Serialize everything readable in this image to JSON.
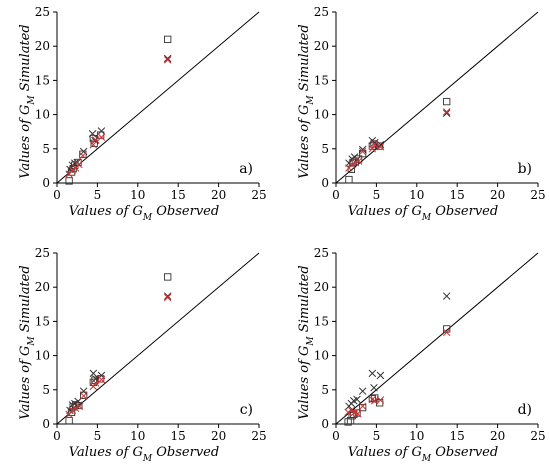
{
  "figure": {
    "x_axis_label": "Values of G",
    "x_axis_sub": "M",
    "x_axis_suffix": " Observed",
    "y_axis_label": "Values of G",
    "y_axis_sub": "M",
    "y_axis_suffix": " Simulated"
  },
  "chart_data": [
    {
      "type": "scatter",
      "panel_label": "a)",
      "xlim": [
        0,
        25
      ],
      "ylim": [
        0,
        25
      ],
      "ticks": [
        "0",
        "5",
        "10",
        "15",
        "20",
        "25"
      ],
      "reference_line": "1:1",
      "series": [
        {
          "marker": "square",
          "color": "#333333",
          "points": [
            [
              1.5,
              0.3
            ],
            [
              1.8,
              1.6
            ],
            [
              2.0,
              2.1
            ],
            [
              2.2,
              2.6
            ],
            [
              2.6,
              3.0
            ],
            [
              3.2,
              4.2
            ],
            [
              4.5,
              6.5
            ],
            [
              4.6,
              5.8
            ],
            [
              5.4,
              7.0
            ],
            [
              13.7,
              21.0
            ]
          ]
        },
        {
          "marker": "x",
          "color": "#333333",
          "points": [
            [
              1.6,
              2.0
            ],
            [
              1.9,
              2.6
            ],
            [
              2.2,
              2.9
            ],
            [
              2.5,
              3.0
            ],
            [
              3.3,
              4.6
            ],
            [
              4.4,
              7.2
            ],
            [
              4.7,
              6.2
            ],
            [
              5.5,
              7.6
            ],
            [
              13.7,
              18.2
            ]
          ]
        },
        {
          "marker": "x",
          "color": "#d03030",
          "points": [
            [
              1.5,
              1.3
            ],
            [
              1.9,
              1.9
            ],
            [
              2.3,
              2.2
            ],
            [
              2.7,
              2.7
            ],
            [
              3.2,
              4.0
            ],
            [
              4.5,
              5.6
            ],
            [
              4.8,
              6.3
            ],
            [
              5.5,
              6.7
            ],
            [
              13.7,
              18.0
            ]
          ]
        }
      ]
    },
    {
      "type": "scatter",
      "panel_label": "b)",
      "xlim": [
        0,
        25
      ],
      "ylim": [
        0,
        25
      ],
      "ticks": [
        "0",
        "5",
        "10",
        "15",
        "20",
        "25"
      ],
      "reference_line": "1:1",
      "series": [
        {
          "marker": "square",
          "color": "#333333",
          "points": [
            [
              1.6,
              0.5
            ],
            [
              1.9,
              2.0
            ],
            [
              2.1,
              3.0
            ],
            [
              2.4,
              3.2
            ],
            [
              2.8,
              3.5
            ],
            [
              3.3,
              4.3
            ],
            [
              4.5,
              5.4
            ],
            [
              4.7,
              5.7
            ],
            [
              5.4,
              5.4
            ],
            [
              13.7,
              11.9
            ]
          ]
        },
        {
          "marker": "x",
          "color": "#333333",
          "points": [
            [
              1.6,
              2.9
            ],
            [
              2.0,
              3.5
            ],
            [
              2.3,
              3.8
            ],
            [
              2.6,
              3.4
            ],
            [
              3.3,
              4.9
            ],
            [
              4.5,
              6.2
            ],
            [
              4.8,
              5.9
            ],
            [
              5.5,
              5.6
            ],
            [
              13.7,
              10.2
            ]
          ]
        },
        {
          "marker": "x",
          "color": "#d03030",
          "points": [
            [
              1.6,
              2.2
            ],
            [
              2.0,
              2.7
            ],
            [
              2.4,
              3.0
            ],
            [
              2.8,
              3.2
            ],
            [
              3.3,
              4.6
            ],
            [
              4.5,
              5.0
            ],
            [
              4.8,
              5.6
            ],
            [
              5.5,
              5.3
            ],
            [
              13.7,
              10.4
            ]
          ]
        }
      ]
    },
    {
      "type": "scatter",
      "panel_label": "c)",
      "xlim": [
        0,
        25
      ],
      "ylim": [
        0,
        25
      ],
      "ticks": [
        "0",
        "5",
        "10",
        "15",
        "20",
        "25"
      ],
      "reference_line": "1:1",
      "series": [
        {
          "marker": "square",
          "color": "#333333",
          "points": [
            [
              1.5,
              0.5
            ],
            [
              1.8,
              1.7
            ],
            [
              2.0,
              2.5
            ],
            [
              2.3,
              2.8
            ],
            [
              2.7,
              2.7
            ],
            [
              3.3,
              4.2
            ],
            [
              4.5,
              6.1
            ],
            [
              4.7,
              6.4
            ],
            [
              5.4,
              6.6
            ],
            [
              13.7,
              21.5
            ]
          ]
        },
        {
          "marker": "x",
          "color": "#333333",
          "points": [
            [
              1.6,
              2.0
            ],
            [
              1.9,
              2.8
            ],
            [
              2.2,
              3.0
            ],
            [
              2.6,
              3.3
            ],
            [
              3.3,
              4.8
            ],
            [
              4.5,
              7.4
            ],
            [
              4.8,
              6.6
            ],
            [
              5.5,
              7.1
            ],
            [
              13.7,
              18.7
            ]
          ]
        },
        {
          "marker": "x",
          "color": "#d03030",
          "points": [
            [
              1.5,
              1.4
            ],
            [
              1.9,
              2.0
            ],
            [
              2.3,
              2.3
            ],
            [
              2.8,
              2.6
            ],
            [
              3.3,
              4.1
            ],
            [
              4.5,
              5.5
            ],
            [
              4.8,
              6.0
            ],
            [
              5.5,
              6.5
            ],
            [
              13.7,
              18.5
            ]
          ]
        }
      ]
    },
    {
      "type": "scatter",
      "panel_label": "d)",
      "xlim": [
        0,
        25
      ],
      "ylim": [
        0,
        25
      ],
      "ticks": [
        "0",
        "5",
        "10",
        "15",
        "20",
        "25"
      ],
      "reference_line": "1:1",
      "series": [
        {
          "marker": "square",
          "color": "#333333",
          "points": [
            [
              1.5,
              0.3
            ],
            [
              1.8,
              0.5
            ],
            [
              2.0,
              1.2
            ],
            [
              2.2,
              1.4
            ],
            [
              2.6,
              1.6
            ],
            [
              3.3,
              2.4
            ],
            [
              4.5,
              3.7
            ],
            [
              4.8,
              3.8
            ],
            [
              5.4,
              3.1
            ],
            [
              13.7,
              13.9
            ]
          ]
        },
        {
          "marker": "x",
          "color": "#333333",
          "points": [
            [
              1.6,
              2.6
            ],
            [
              1.9,
              3.0
            ],
            [
              2.2,
              3.4
            ],
            [
              2.6,
              3.6
            ],
            [
              3.3,
              4.8
            ],
            [
              4.5,
              7.4
            ],
            [
              4.7,
              5.3
            ],
            [
              5.5,
              7.1
            ],
            [
              13.7,
              18.7
            ]
          ]
        },
        {
          "marker": "x",
          "color": "#d03030",
          "points": [
            [
              1.5,
              1.7
            ],
            [
              1.9,
              2.0
            ],
            [
              2.3,
              1.7
            ],
            [
              2.7,
              1.5
            ],
            [
              3.3,
              2.6
            ],
            [
              4.5,
              3.6
            ],
            [
              4.8,
              3.4
            ],
            [
              5.5,
              3.5
            ],
            [
              13.7,
              13.4
            ]
          ]
        }
      ]
    }
  ]
}
